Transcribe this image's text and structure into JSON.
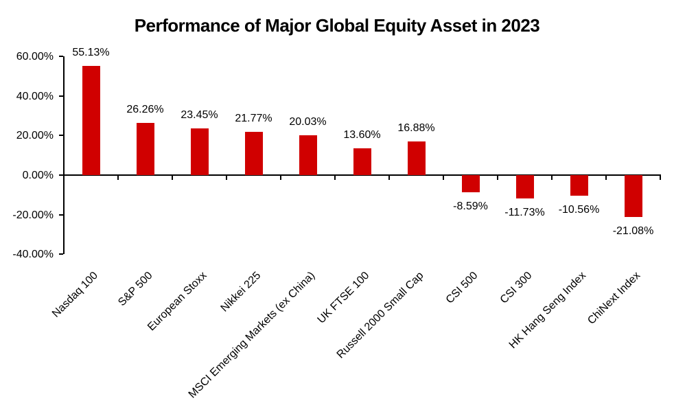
{
  "chart_data": {
    "type": "bar",
    "title": "Performance of Major Global Equity Asset in 2023",
    "categories": [
      "Nasdaq 100",
      "S&P 500",
      "European Stoxx",
      "Nikkei 225",
      "MSCI Emerging Markets (ex China)",
      "UK FTSE 100",
      "Russell 2000 Small Cap",
      "CSI 500",
      "CSI 300",
      "HK Hang Seng Index",
      "ChiNext Index"
    ],
    "values": [
      55.13,
      26.26,
      23.45,
      21.77,
      20.03,
      13.6,
      16.88,
      -8.59,
      -11.73,
      -10.56,
      -21.08
    ],
    "data_labels": [
      "55.13%",
      "26.26%",
      "23.45%",
      "21.77%",
      "20.03%",
      "13.60%",
      "16.88%",
      "-8.59%",
      "-11.73%",
      "-10.56%",
      "-21.08%"
    ],
    "y_axis": {
      "tick_values": [
        60,
        40,
        20,
        0,
        -20,
        -40
      ],
      "tick_labels": [
        "60.00%",
        "40.00%",
        "20.00%",
        "0.00%",
        "-20.00%",
        "-40.00%"
      ],
      "ylim": [
        -40,
        60
      ]
    },
    "xlabel": "",
    "ylabel": "",
    "grid": false,
    "legend": false,
    "bar_color": "#D00000",
    "axis_color": "#000000",
    "text_color": "#000000",
    "background_color": "#FFFFFF"
  }
}
